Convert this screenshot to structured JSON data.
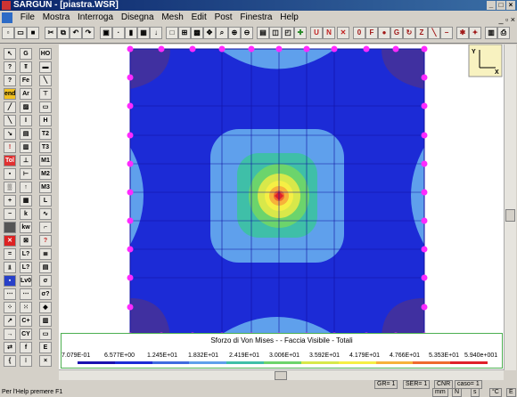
{
  "window": {
    "title": "SARGUN - [piastra.WSR]"
  },
  "menu": {
    "items": [
      "File",
      "Mostra",
      "Interroga",
      "Disegna",
      "Mesh",
      "Edit",
      "Post",
      "Finestra",
      "Help"
    ]
  },
  "toolbar": {
    "text_buttons": [
      "U",
      "N",
      "0",
      "F",
      "G",
      "Z"
    ]
  },
  "left_toolbar": {
    "labels": [
      "HO",
      "Fe",
      "Ar",
      "T2",
      "T3",
      "M1",
      "M2",
      "M3",
      "L",
      "L?",
      "Lv0",
      "C+",
      "CY",
      "E"
    ]
  },
  "legend": {
    "title": "Sforzo di Von Mises -  - Faccia Visibile - Totali",
    "values": [
      "7.079E-01",
      "6.577E+00",
      "1.245E+01",
      "1.832E+01",
      "2.419E+01",
      "3.006E+01",
      "3.592E+01",
      "4.179E+01",
      "4.766E+01",
      "5.353E+01",
      "5.940e+001"
    ],
    "colors": [
      "#1a10b0",
      "#1c2bd6",
      "#3f6be0",
      "#5fa0ec",
      "#3fbfa8",
      "#6cd46c",
      "#d8e84a",
      "#f6ef44",
      "#f7b23a",
      "#ef6a2e",
      "#e0202a"
    ]
  },
  "plot": {
    "axis_labels": [
      "Y",
      "X"
    ]
  },
  "status": {
    "help_text": "Per l'Help premere F1",
    "gr": "GR= 1",
    "ser": "SER= 1",
    "cnr": "CNR",
    "caso": "caso= 1",
    "units": [
      "mm",
      "N",
      "s",
      "°C",
      "E"
    ]
  }
}
